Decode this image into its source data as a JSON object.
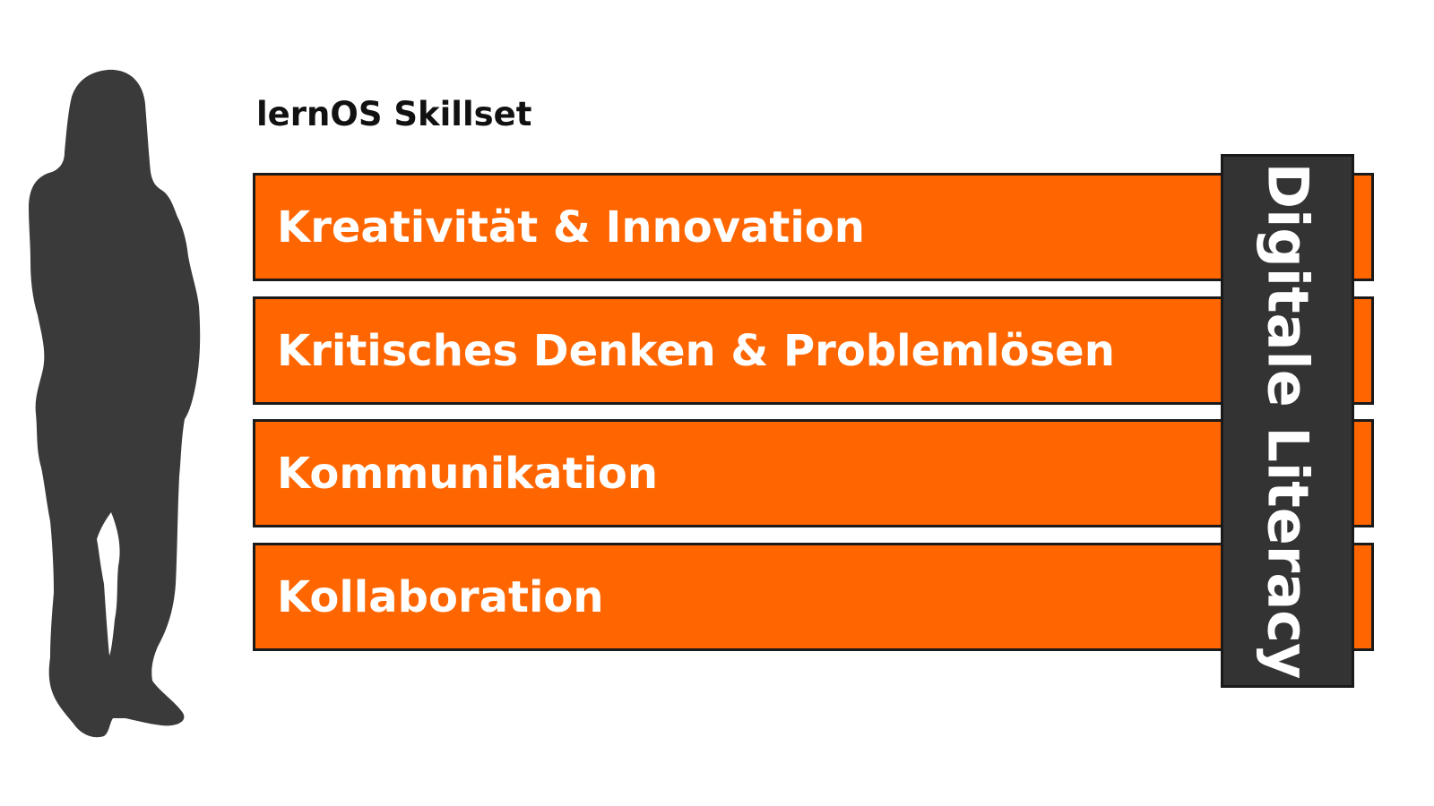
{
  "title": "lernOS Skillset",
  "skills": [
    "Kreativität & Innovation",
    "Kritisches Denken & Problemlösen",
    "Kommunikation",
    "Kollaboration"
  ],
  "pillar": "Digitale Literacy",
  "colors": {
    "bar": "#ff6600",
    "pillar": "#333333",
    "silhouette": "#3a3a3a",
    "border": "#1a1a1a",
    "text_light": "#ffffff"
  },
  "icons": {
    "person": "person-silhouette-icon"
  }
}
